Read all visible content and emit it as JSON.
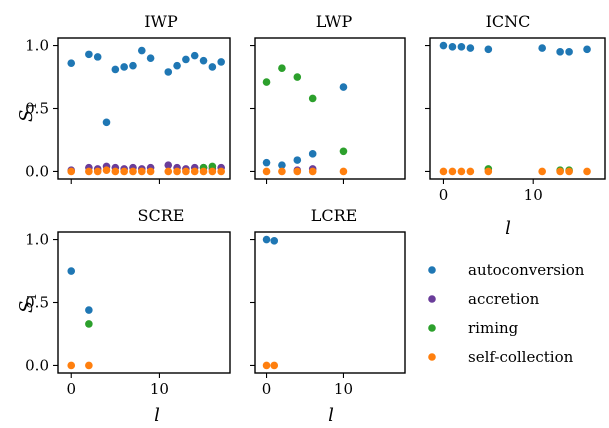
{
  "chart_data": {
    "type": "scatter",
    "shared": {
      "ylabel_main": "S",
      "ylabel_sub": "1",
      "xlabel": "l",
      "xlim": [
        -1.5,
        18
      ],
      "ylim": [
        -0.06,
        1.06
      ],
      "xticks": [
        0,
        10
      ],
      "yticks": [
        0.0,
        0.5,
        1.0
      ],
      "ytick_labels": [
        "0.0",
        "0.5",
        "1.0"
      ]
    },
    "legend": {
      "placement": "lower-right",
      "entries": [
        {
          "name": "autoconversion",
          "color": "#1f77b4"
        },
        {
          "name": "accretion",
          "color": "#6a3d9a"
        },
        {
          "name": "riming",
          "color": "#2ca02c"
        },
        {
          "name": "self-collection",
          "color": "#ff7f0e"
        }
      ]
    },
    "panels": [
      {
        "title": "IWP",
        "series": [
          {
            "key": "autoconversion",
            "points": [
              [
                0,
                0.86
              ],
              [
                2,
                0.93
              ],
              [
                3,
                0.91
              ],
              [
                4,
                0.39
              ],
              [
                5,
                0.81
              ],
              [
                6,
                0.83
              ],
              [
                7,
                0.84
              ],
              [
                8,
                0.96
              ],
              [
                9,
                0.9
              ],
              [
                11,
                0.79
              ],
              [
                12,
                0.84
              ],
              [
                13,
                0.89
              ],
              [
                14,
                0.92
              ],
              [
                15,
                0.88
              ],
              [
                16,
                0.83
              ],
              [
                17,
                0.87
              ]
            ]
          },
          {
            "key": "accretion",
            "points": [
              [
                0,
                0.01
              ],
              [
                2,
                0.03
              ],
              [
                3,
                0.02
              ],
              [
                4,
                0.04
              ],
              [
                5,
                0.03
              ],
              [
                6,
                0.02
              ],
              [
                7,
                0.03
              ],
              [
                8,
                0.02
              ],
              [
                9,
                0.03
              ],
              [
                11,
                0.05
              ],
              [
                12,
                0.03
              ],
              [
                13,
                0.02
              ],
              [
                14,
                0.03
              ],
              [
                15,
                0.03
              ],
              [
                16,
                0.02
              ],
              [
                17,
                0.03
              ]
            ]
          },
          {
            "key": "riming",
            "points": [
              [
                15,
                0.03
              ],
              [
                16,
                0.04
              ]
            ]
          },
          {
            "key": "self-collection",
            "points": [
              [
                0,
                0.0
              ],
              [
                2,
                0.0
              ],
              [
                3,
                0.0
              ],
              [
                4,
                0.01
              ],
              [
                5,
                0.0
              ],
              [
                6,
                0.0
              ],
              [
                7,
                0.0
              ],
              [
                8,
                0.0
              ],
              [
                9,
                0.0
              ],
              [
                11,
                0.0
              ],
              [
                12,
                0.0
              ],
              [
                13,
                0.0
              ],
              [
                14,
                0.0
              ],
              [
                15,
                0.0
              ],
              [
                16,
                0.0
              ],
              [
                17,
                0.0
              ]
            ]
          }
        ]
      },
      {
        "title": "LWP",
        "series": [
          {
            "key": "autoconversion",
            "points": [
              [
                0,
                0.07
              ],
              [
                2,
                0.05
              ],
              [
                4,
                0.09
              ],
              [
                6,
                0.14
              ],
              [
                10,
                0.67
              ]
            ]
          },
          {
            "key": "accretion",
            "points": [
              [
                4,
                0.01
              ],
              [
                6,
                0.02
              ]
            ]
          },
          {
            "key": "riming",
            "points": [
              [
                0,
                0.71
              ],
              [
                2,
                0.82
              ],
              [
                4,
                0.75
              ],
              [
                6,
                0.58
              ],
              [
                10,
                0.16
              ]
            ]
          },
          {
            "key": "self-collection",
            "points": [
              [
                0,
                0.0
              ],
              [
                2,
                0.0
              ],
              [
                4,
                0.0
              ],
              [
                6,
                0.0
              ],
              [
                10,
                0.0
              ]
            ]
          }
        ]
      },
      {
        "title": "ICNC",
        "series": [
          {
            "key": "autoconversion",
            "points": [
              [
                0,
                1.0
              ],
              [
                1,
                0.99
              ],
              [
                2,
                0.99
              ],
              [
                3,
                0.98
              ],
              [
                5,
                0.97
              ],
              [
                11,
                0.98
              ],
              [
                13,
                0.95
              ],
              [
                14,
                0.95
              ],
              [
                16,
                0.97
              ]
            ]
          },
          {
            "key": "accretion",
            "points": []
          },
          {
            "key": "riming",
            "points": [
              [
                5,
                0.02
              ],
              [
                13,
                0.01
              ],
              [
                14,
                0.01
              ]
            ]
          },
          {
            "key": "self-collection",
            "points": [
              [
                0,
                0.0
              ],
              [
                1,
                0.0
              ],
              [
                2,
                0.0
              ],
              [
                3,
                0.0
              ],
              [
                5,
                0.0
              ],
              [
                11,
                0.0
              ],
              [
                13,
                0.0
              ],
              [
                14,
                0.0
              ],
              [
                16,
                0.0
              ]
            ]
          }
        ]
      },
      {
        "title": "SCRE",
        "series": [
          {
            "key": "autoconversion",
            "points": [
              [
                0,
                0.75
              ],
              [
                2,
                0.44
              ]
            ]
          },
          {
            "key": "accretion",
            "points": []
          },
          {
            "key": "riming",
            "points": [
              [
                2,
                0.33
              ]
            ]
          },
          {
            "key": "self-collection",
            "points": [
              [
                0,
                0.0
              ],
              [
                2,
                0.0
              ]
            ]
          }
        ]
      },
      {
        "title": "LCRE",
        "series": [
          {
            "key": "autoconversion",
            "points": [
              [
                0,
                1.0
              ],
              [
                1,
                0.99
              ]
            ]
          },
          {
            "key": "accretion",
            "points": []
          },
          {
            "key": "riming",
            "points": []
          },
          {
            "key": "self-collection",
            "points": [
              [
                0,
                0.0
              ],
              [
                1,
                0.0
              ]
            ]
          }
        ]
      }
    ]
  }
}
